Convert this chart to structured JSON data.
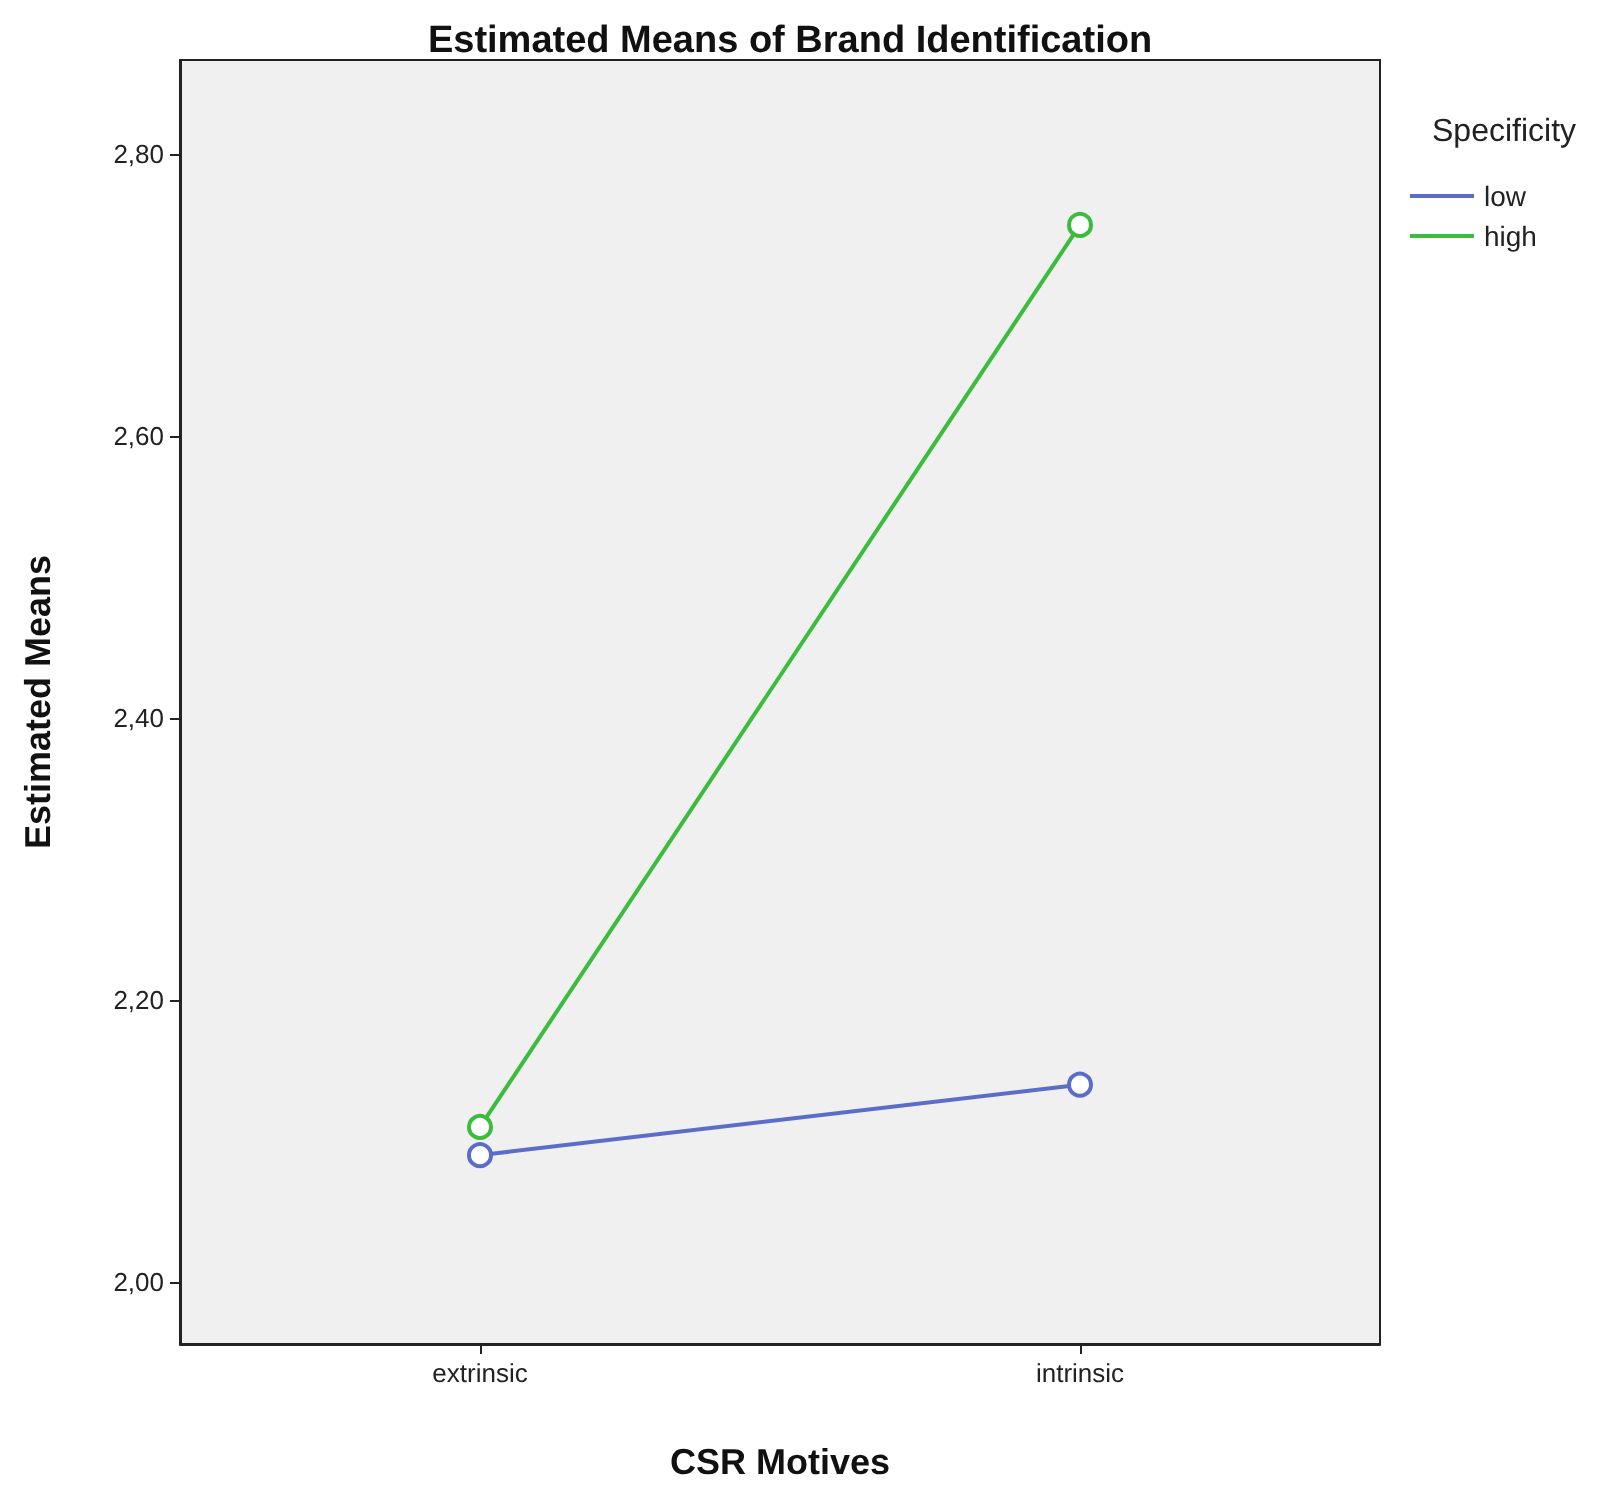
{
  "chart_data": {
    "type": "line",
    "title": "Estimated Means of Brand Identification",
    "xlabel": "CSR Motives",
    "ylabel": "Estimated Means",
    "legend_title": "Specificity",
    "categories": [
      "extrinsic",
      "intrinsic"
    ],
    "series": [
      {
        "name": "low",
        "color": "#5b6dc8",
        "values": [
          2.09,
          2.14
        ]
      },
      {
        "name": "high",
        "color": "#3cbc3c",
        "values": [
          2.11,
          2.75
        ]
      }
    ],
    "ylim": [
      1.956,
      2.867
    ],
    "yticks": [
      {
        "value": 2.0,
        "label": "2,00"
      },
      {
        "value": 2.2,
        "label": "2,20"
      },
      {
        "value": 2.4,
        "label": "2,40"
      },
      {
        "value": 2.6,
        "label": "2,60"
      },
      {
        "value": 2.8,
        "label": "2,80"
      }
    ],
    "grid": false,
    "legend": "top right",
    "marker": "circle",
    "line_style": "solid"
  }
}
